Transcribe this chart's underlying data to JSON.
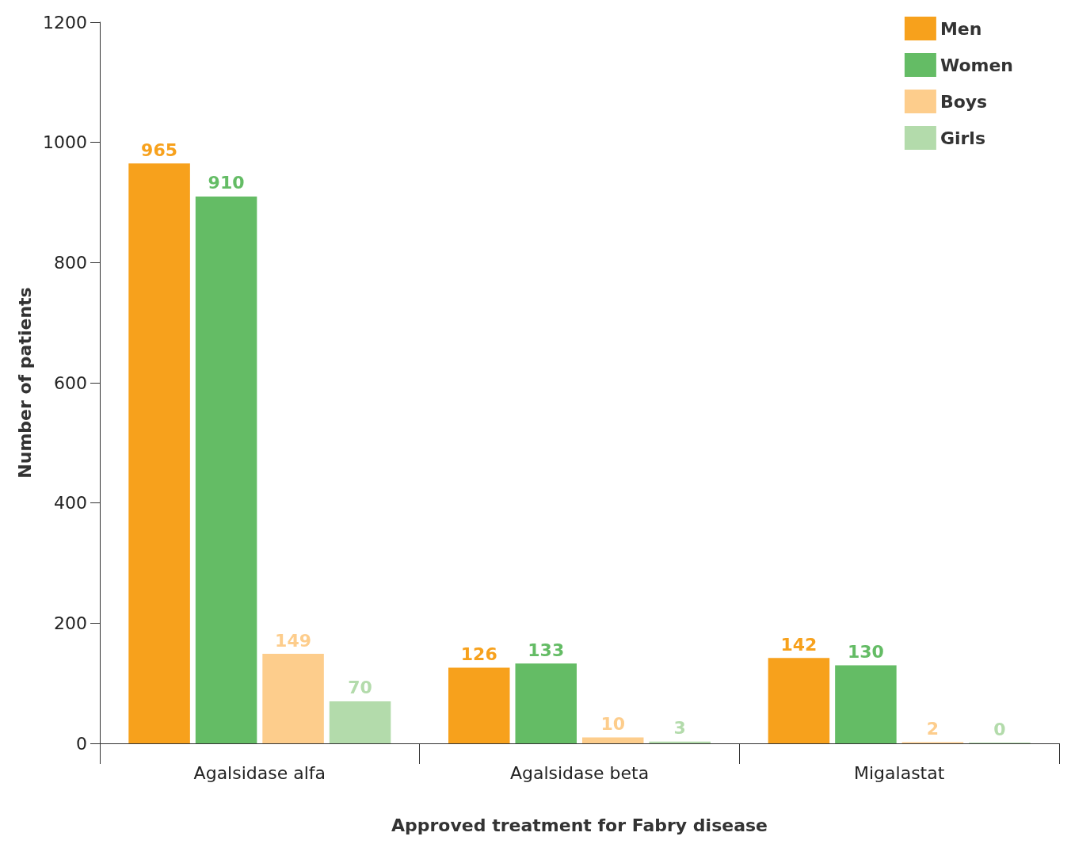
{
  "chart_data": {
    "type": "bar",
    "xlabel": "Approved treatment for Fabry disease",
    "ylabel": "Number of patients",
    "categories": [
      "Agalsidase alfa",
      "Agalsidase beta",
      "Migalastat"
    ],
    "series": [
      {
        "name": "Men",
        "color": "#f7a11c",
        "values": [
          965,
          126,
          142
        ]
      },
      {
        "name": "Women",
        "color": "#64bc65",
        "values": [
          910,
          133,
          130
        ]
      },
      {
        "name": "Boys",
        "color": "#fdcd8c",
        "values": [
          149,
          10,
          2
        ]
      },
      {
        "name": "Girls",
        "color": "#b3dbab",
        "values": [
          70,
          3,
          0
        ]
      }
    ],
    "ylim": [
      0,
      1200
    ],
    "yticks": [
      0,
      200,
      400,
      600,
      800,
      1000,
      1200
    ],
    "legend": "top right",
    "data_labels": true
  }
}
